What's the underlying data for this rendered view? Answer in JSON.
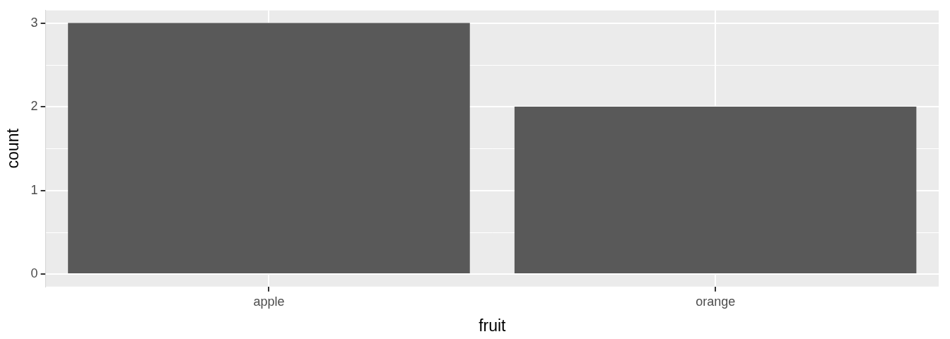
{
  "chart_data": {
    "type": "bar",
    "x_label": "fruit",
    "y_label": "count",
    "categories": [
      "apple",
      "orange"
    ],
    "values": [
      3,
      2
    ],
    "color": "#595959",
    "ylim": [
      -0.15,
      3.15
    ],
    "yticks": [
      0,
      1,
      2,
      3
    ],
    "grid": true
  }
}
